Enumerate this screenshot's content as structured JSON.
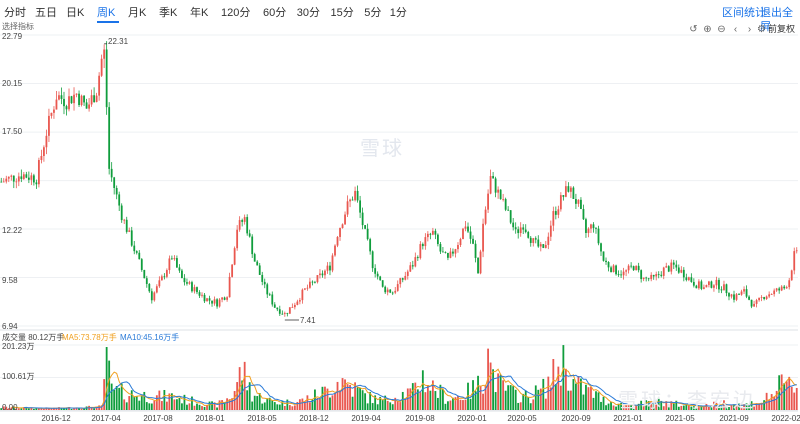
{
  "toolbar": {
    "periods": [
      "分时",
      "五日",
      "日K",
      "周K",
      "月K",
      "季K",
      "年K",
      "120分",
      "60分",
      "30分",
      "15分",
      "5分",
      "1分"
    ],
    "active_period": "周K",
    "range_stats": "区间统计",
    "exit_fullscreen": "退出全屏",
    "adjust_option": "前复权",
    "controls": [
      "undo-icon",
      "zoom-in-icon",
      "zoom-out-icon",
      "scroll-left-icon",
      "scroll-right-icon",
      "settings-icon"
    ]
  },
  "indicator_label": "选择指标",
  "price_axis": [
    "22.79",
    "20.15",
    "17.50",
    "12.22",
    "9.58",
    "6.94"
  ],
  "max_label": "22.31",
  "min_label": "7.41",
  "volume_legend": {
    "volume": "成交量 80.12万手",
    "ma5": "MA5:73.78万手",
    "ma10": "MA10:45.16万手"
  },
  "volume_axis": [
    "201.23万",
    "100.61万",
    "0.00"
  ],
  "x_axis": [
    "2016-12",
    "2017-04",
    "2017-08",
    "2018-01",
    "2018-05",
    "2018-12",
    "2019-04",
    "2019-08",
    "2020-01",
    "2020-05",
    "2020-09",
    "2021-01",
    "2021-05",
    "2021-09",
    "2022-02"
  ],
  "watermark": "雪球",
  "watermark_author": "雪球：李宏边",
  "colors": {
    "up": "#e9574f",
    "down": "#0f9d3c",
    "ma5": "#f0a020",
    "ma10": "#2b7bd8",
    "accent": "#1a73e8"
  },
  "chart_data": {
    "type": "candlestick",
    "y_range": [
      6.94,
      22.79
    ],
    "volume_range": [
      0,
      201.23
    ],
    "anchors": [
      [
        0,
        14.8
      ],
      [
        8,
        15.2
      ],
      [
        14,
        15.0
      ],
      [
        18,
        17.5
      ],
      [
        22,
        19.5
      ],
      [
        26,
        19.2
      ],
      [
        30,
        19.6
      ],
      [
        34,
        18.8
      ],
      [
        38,
        19.8
      ],
      [
        41,
        22.3
      ],
      [
        43,
        15.5
      ],
      [
        48,
        13.0
      ],
      [
        52,
        11.5
      ],
      [
        56,
        10.0
      ],
      [
        60,
        8.5
      ],
      [
        64,
        9.5
      ],
      [
        68,
        10.7
      ],
      [
        72,
        9.5
      ],
      [
        78,
        8.8
      ],
      [
        82,
        8.4
      ],
      [
        86,
        8.2
      ],
      [
        90,
        8.7
      ],
      [
        94,
        12.3
      ],
      [
        97,
        12.8
      ],
      [
        101,
        10.5
      ],
      [
        105,
        9.0
      ],
      [
        109,
        8.0
      ],
      [
        113,
        7.6
      ],
      [
        117,
        8.2
      ],
      [
        121,
        8.9
      ],
      [
        126,
        9.5
      ],
      [
        131,
        10.2
      ],
      [
        134,
        12.0
      ],
      [
        138,
        13.5
      ],
      [
        141,
        14.2
      ],
      [
        144,
        12.5
      ],
      [
        148,
        10.3
      ],
      [
        152,
        9.0
      ],
      [
        156,
        8.8
      ],
      [
        160,
        9.5
      ],
      [
        164,
        10.3
      ],
      [
        168,
        11.5
      ],
      [
        172,
        12.0
      ],
      [
        175,
        11.0
      ],
      [
        178,
        10.5
      ],
      [
        182,
        11.5
      ],
      [
        185,
        12.5
      ],
      [
        188,
        11.3
      ],
      [
        190,
        9.8
      ],
      [
        192,
        12.5
      ],
      [
        195,
        15.0
      ],
      [
        198,
        14.2
      ],
      [
        202,
        13.0
      ],
      [
        205,
        12.0
      ],
      [
        208,
        12.5
      ],
      [
        212,
        11.5
      ],
      [
        216,
        11.0
      ],
      [
        220,
        13.0
      ],
      [
        223,
        13.8
      ],
      [
        226,
        14.5
      ],
      [
        230,
        13.5
      ],
      [
        233,
        12.0
      ],
      [
        236,
        12.5
      ],
      [
        240,
        10.5
      ],
      [
        244,
        10.0
      ],
      [
        248,
        9.8
      ],
      [
        252,
        10.2
      ],
      [
        256,
        9.5
      ],
      [
        260,
        9.5
      ],
      [
        264,
        10.0
      ],
      [
        268,
        10.2
      ],
      [
        272,
        9.8
      ],
      [
        276,
        9.3
      ],
      [
        280,
        9.0
      ],
      [
        284,
        9.3
      ],
      [
        288,
        9.0
      ],
      [
        292,
        8.5
      ],
      [
        296,
        8.8
      ],
      [
        300,
        8.0
      ],
      [
        304,
        8.6
      ],
      [
        308,
        8.8
      ],
      [
        312,
        9.0
      ],
      [
        314,
        9.5
      ],
      [
        316,
        10.8
      ]
    ],
    "volume_anchors": [
      [
        0,
        8
      ],
      [
        20,
        5
      ],
      [
        40,
        10
      ],
      [
        42,
        150
      ],
      [
        44,
        60
      ],
      [
        50,
        50
      ],
      [
        56,
        45
      ],
      [
        62,
        40
      ],
      [
        68,
        42
      ],
      [
        74,
        30
      ],
      [
        80,
        22
      ],
      [
        86,
        15
      ],
      [
        92,
        45
      ],
      [
        96,
        125
      ],
      [
        100,
        50
      ],
      [
        106,
        30
      ],
      [
        112,
        22
      ],
      [
        118,
        25
      ],
      [
        124,
        40
      ],
      [
        130,
        60
      ],
      [
        135,
        95
      ],
      [
        140,
        70
      ],
      [
        146,
        40
      ],
      [
        152,
        28
      ],
      [
        158,
        45
      ],
      [
        164,
        55
      ],
      [
        168,
        100
      ],
      [
        172,
        70
      ],
      [
        178,
        35
      ],
      [
        184,
        45
      ],
      [
        190,
        75
      ],
      [
        194,
        145
      ],
      [
        198,
        80
      ],
      [
        204,
        50
      ],
      [
        210,
        40
      ],
      [
        216,
        65
      ],
      [
        220,
        105
      ],
      [
        224,
        150
      ],
      [
        228,
        80
      ],
      [
        234,
        60
      ],
      [
        240,
        30
      ],
      [
        248,
        15
      ],
      [
        256,
        20
      ],
      [
        264,
        25
      ],
      [
        272,
        15
      ],
      [
        280,
        12
      ],
      [
        288,
        22
      ],
      [
        296,
        15
      ],
      [
        304,
        30
      ],
      [
        310,
        70
      ],
      [
        316,
        80
      ]
    ],
    "count": 318
  }
}
